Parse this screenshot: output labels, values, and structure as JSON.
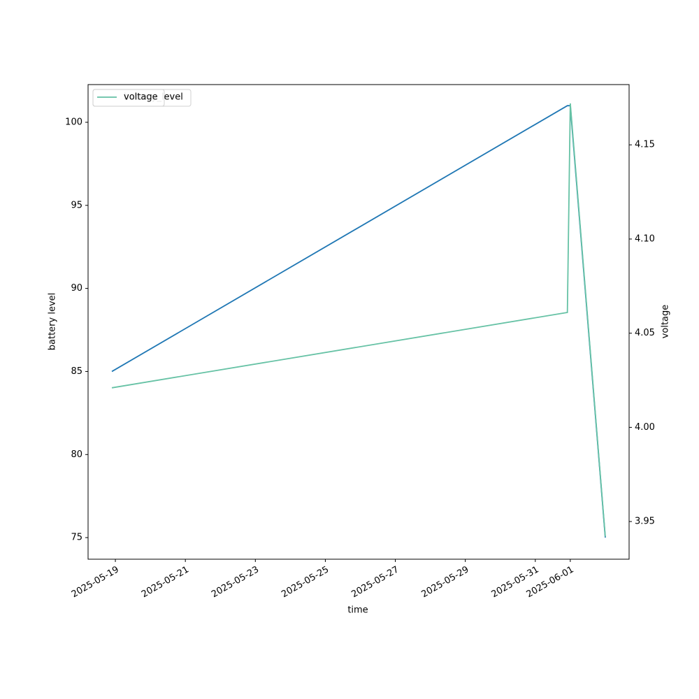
{
  "chart_data": {
    "type": "line",
    "x_label": "time",
    "y_label": "battery level",
    "y2_label": "voltage",
    "x": [
      "2025-05-18T21:36",
      "2025-05-31T22:00",
      "2025-06-01T00:00",
      "2025-06-02T00:00"
    ],
    "series": [
      {
        "name": "battery_level",
        "color": "#1f77b4",
        "values": [
          85,
          101,
          101,
          75
        ]
      },
      {
        "name": "voltage",
        "color": "#66c2a5",
        "axis": "y2",
        "values": [
          4.021,
          4.061,
          4.172,
          3.942
        ]
      }
    ],
    "xlim": [
      "2025-05-18T05:17",
      "2025-06-02T16:20"
    ],
    "xticks": [
      "2025-05-19",
      "2025-05-21",
      "2025-05-23",
      "2025-05-25",
      "2025-05-27",
      "2025-05-29",
      "2025-05-31",
      "2025-06-01"
    ],
    "ylim": [
      73.7,
      102.27
    ],
    "yticks": [
      75,
      80,
      85,
      90,
      95,
      100
    ],
    "y2lim": [
      3.93,
      4.182
    ],
    "y2ticks": [
      3.95,
      {
        "value": 4.0,
        "label": "4.00"
      },
      4.05,
      {
        "value": 4.1,
        "label": "4.10"
      },
      4.15
    ],
    "grid": false
  }
}
